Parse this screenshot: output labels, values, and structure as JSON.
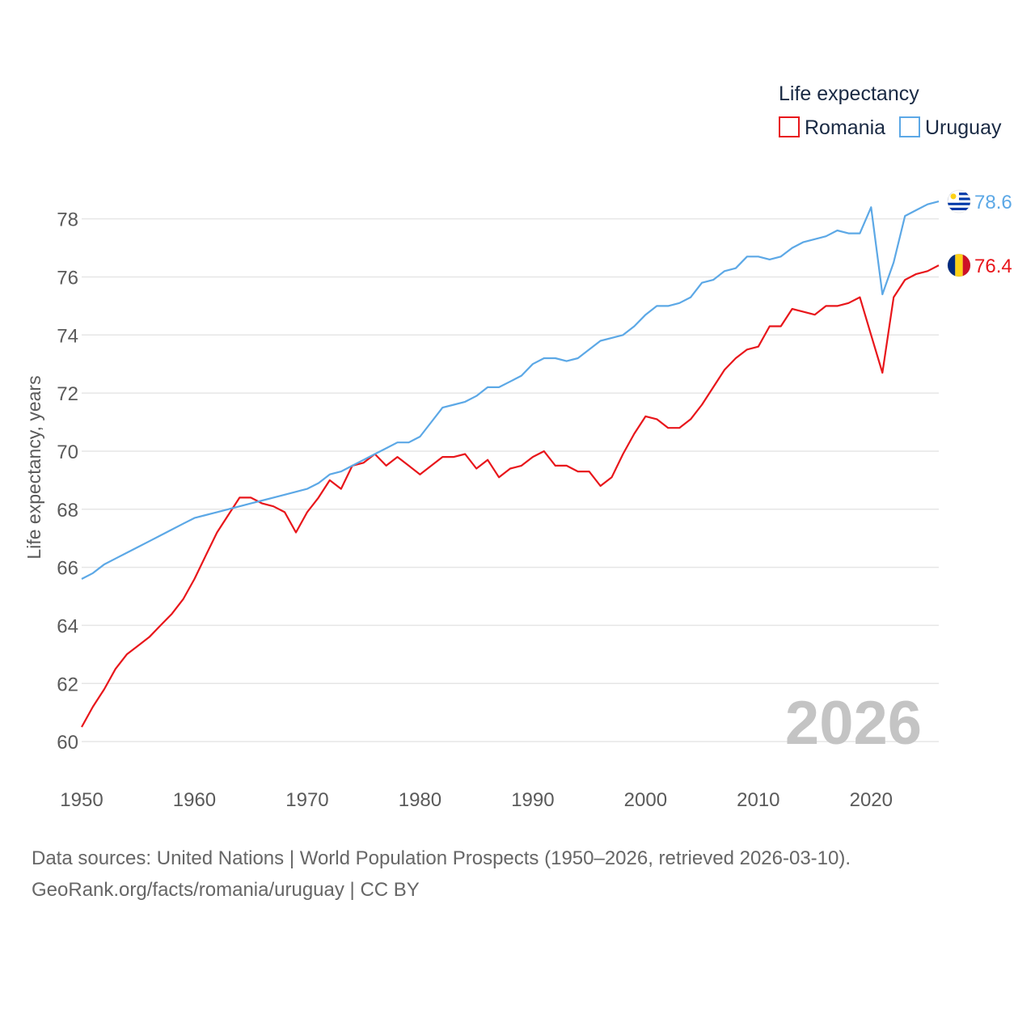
{
  "legend": {
    "title": "Life expectancy"
  },
  "footer": {
    "sources": "Data sources: United Nations | World Population Prospects (1950–2026, retrieved 2026-03-10).",
    "credit": "GeoRank.org/facts/romania/uruguay | CC BY"
  },
  "year_label": "2026",
  "colors": {
    "grid": "#e6e6e6",
    "tick_text": "#5a5a5a",
    "year_watermark": "#c4c4c4"
  },
  "chart_data": {
    "type": "line",
    "title": "Life expectancy",
    "xlabel": "",
    "ylabel": "Life expectancy, years",
    "xlim": [
      1950,
      2026
    ],
    "ylim": [
      59,
      79.8
    ],
    "xticks": [
      1950,
      1960,
      1970,
      1980,
      1990,
      2000,
      2010,
      2020
    ],
    "yticks": [
      60,
      62,
      64,
      66,
      68,
      70,
      72,
      74,
      76,
      78
    ],
    "grid": true,
    "legend_position": "top-right",
    "x": [
      1950,
      1951,
      1952,
      1953,
      1954,
      1955,
      1956,
      1957,
      1958,
      1959,
      1960,
      1961,
      1962,
      1963,
      1964,
      1965,
      1966,
      1967,
      1968,
      1969,
      1970,
      1971,
      1972,
      1973,
      1974,
      1975,
      1976,
      1977,
      1978,
      1979,
      1980,
      1981,
      1982,
      1983,
      1984,
      1985,
      1986,
      1987,
      1988,
      1989,
      1990,
      1991,
      1992,
      1993,
      1994,
      1995,
      1996,
      1997,
      1998,
      1999,
      2000,
      2001,
      2002,
      2003,
      2004,
      2005,
      2006,
      2007,
      2008,
      2009,
      2010,
      2011,
      2012,
      2013,
      2014,
      2015,
      2016,
      2017,
      2018,
      2019,
      2020,
      2021,
      2022,
      2023,
      2024,
      2025,
      2026
    ],
    "series": [
      {
        "name": "Romania",
        "color": "#e8161b",
        "end_value": "76.4",
        "flag": "romania-flag",
        "values": [
          60.5,
          61.2,
          61.8,
          62.5,
          63.0,
          63.3,
          63.6,
          64.0,
          64.4,
          64.9,
          65.6,
          66.4,
          67.2,
          67.8,
          68.4,
          68.4,
          68.2,
          68.1,
          67.9,
          67.2,
          67.9,
          68.4,
          69.0,
          68.7,
          69.5,
          69.6,
          69.9,
          69.5,
          69.8,
          69.5,
          69.2,
          69.5,
          69.8,
          69.8,
          69.9,
          69.4,
          69.7,
          69.1,
          69.4,
          69.5,
          69.8,
          70.0,
          69.5,
          69.5,
          69.3,
          69.3,
          68.8,
          69.1,
          69.9,
          70.6,
          71.2,
          71.1,
          70.8,
          70.8,
          71.1,
          71.6,
          72.2,
          72.8,
          73.2,
          73.5,
          73.6,
          74.3,
          74.3,
          74.9,
          74.8,
          74.7,
          75.0,
          75.0,
          75.1,
          75.3,
          74.0,
          72.7,
          75.3,
          75.9,
          76.1,
          76.2,
          76.4
        ]
      },
      {
        "name": "Uruguay",
        "color": "#5ca8e6",
        "end_value": "78.6",
        "flag": "uruguay-flag",
        "values": [
          65.6,
          65.8,
          66.1,
          66.3,
          66.5,
          66.7,
          66.9,
          67.1,
          67.3,
          67.5,
          67.7,
          67.8,
          67.9,
          68.0,
          68.1,
          68.2,
          68.3,
          68.4,
          68.5,
          68.6,
          68.7,
          68.9,
          69.2,
          69.3,
          69.5,
          69.7,
          69.9,
          70.1,
          70.3,
          70.3,
          70.5,
          71.0,
          71.5,
          71.6,
          71.7,
          71.9,
          72.2,
          72.2,
          72.4,
          72.6,
          73.0,
          73.2,
          73.2,
          73.1,
          73.2,
          73.5,
          73.8,
          73.9,
          74.0,
          74.3,
          74.7,
          75.0,
          75.0,
          75.1,
          75.3,
          75.8,
          75.9,
          76.2,
          76.3,
          76.7,
          76.7,
          76.6,
          76.7,
          77.0,
          77.2,
          77.3,
          77.4,
          77.6,
          77.5,
          77.5,
          78.4,
          75.4,
          76.5,
          78.1,
          78.3,
          78.5,
          78.6
        ]
      }
    ]
  }
}
